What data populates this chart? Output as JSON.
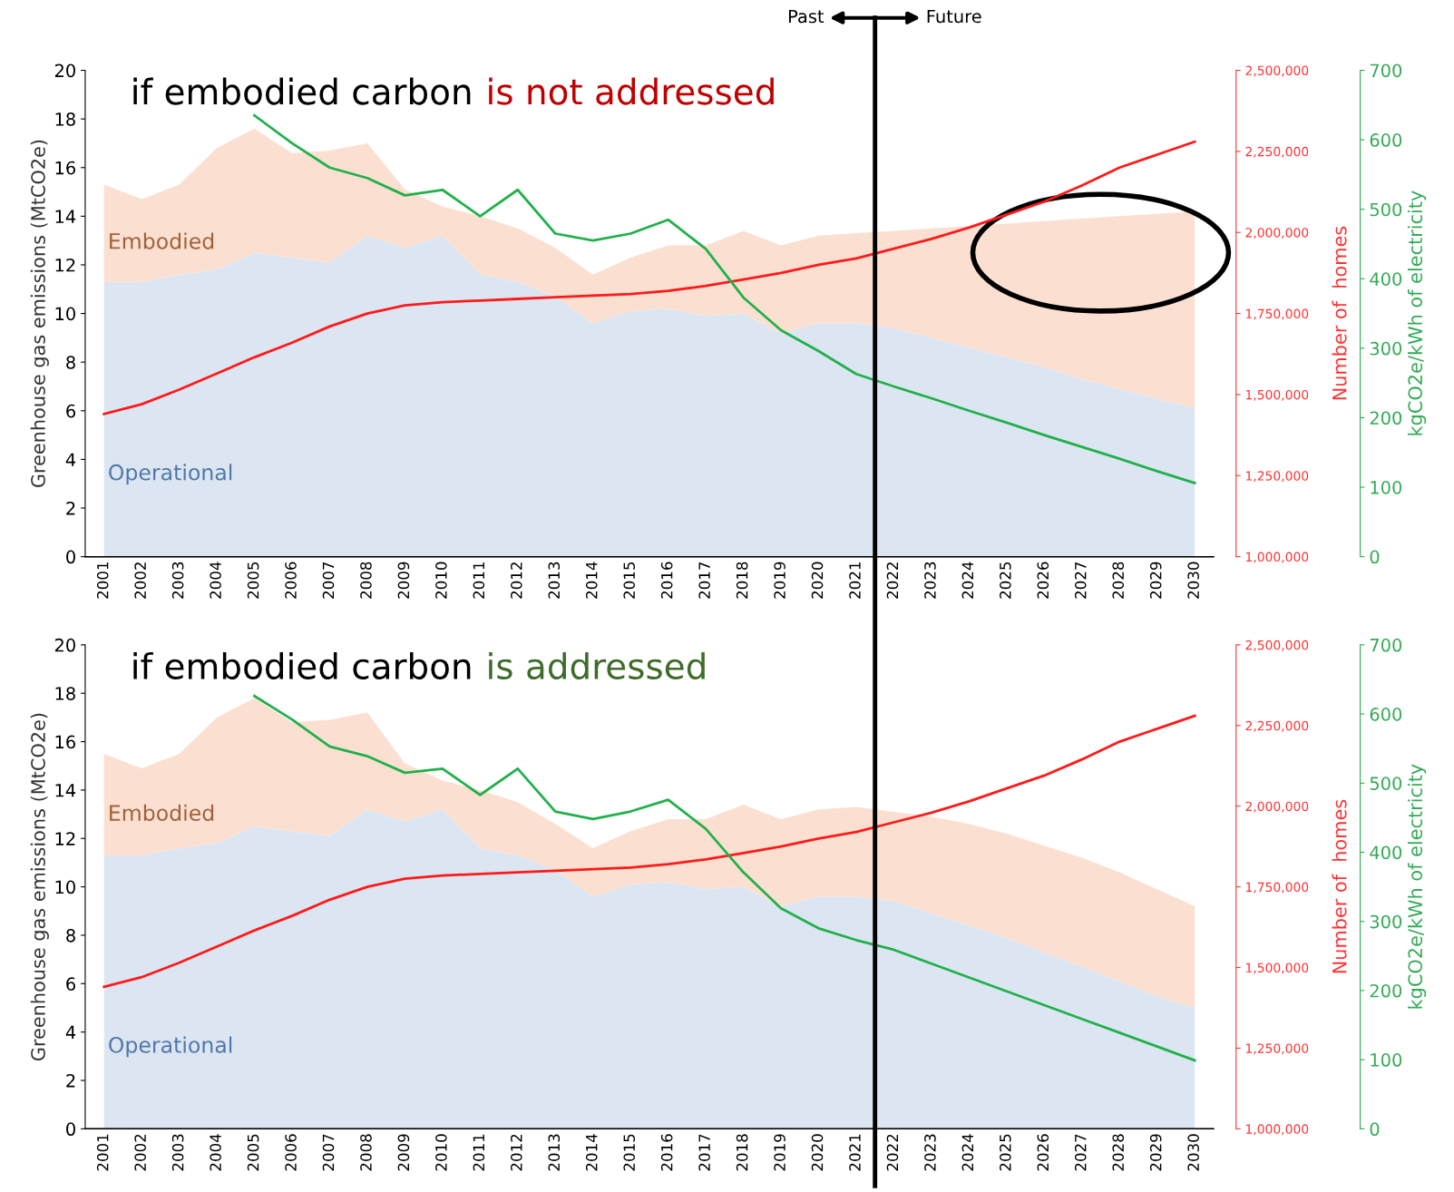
{
  "chart_data": [
    {
      "type": "area",
      "title": "if embodied carbon",
      "subtitle": "is not addressed",
      "ylabel": "Greenhouse gas emissions (MtCO2e)",
      "y2label": "Number of  homes",
      "y3label": "kgCO2e/kWh of electricity",
      "annotations": [
        "Past",
        "Future"
      ],
      "stacked": true,
      "categories": [
        "2001",
        "2002",
        "2003",
        "2004",
        "2005",
        "2006",
        "2007",
        "2008",
        "2009",
        "2010",
        "2011",
        "2012",
        "2013",
        "2014",
        "2015",
        "2016",
        "2017",
        "2018",
        "2019",
        "2020",
        "2021",
        "2022",
        "2023",
        "2024",
        "2025",
        "2026",
        "2027",
        "2028",
        "2029",
        "2030"
      ],
      "ylim": [
        0,
        20
      ],
      "yticks": [
        0,
        2,
        4,
        6,
        8,
        10,
        12,
        14,
        16,
        18,
        20
      ],
      "y2lim": [
        1000000,
        2500000
      ],
      "y2ticks": [
        {
          "value": 1000000,
          "label": "1,000,000"
        },
        {
          "value": 1250000,
          "label": "1,250,000"
        },
        {
          "value": 1500000,
          "label": "1,500,000"
        },
        {
          "value": 1750000,
          "label": "1,750,000"
        },
        {
          "value": 2000000,
          "label": "2,000,000"
        },
        {
          "value": 2250000,
          "label": "2,250,000"
        },
        {
          "value": 2500000,
          "label": "2,500,000"
        }
      ],
      "y3lim": [
        0,
        700
      ],
      "y3ticks": [
        0,
        100,
        200,
        300,
        400,
        500,
        600,
        700
      ],
      "series": [
        {
          "name": "Operational",
          "color": "#dce6f2",
          "values": [
            11.3,
            11.3,
            11.6,
            11.8,
            12.5,
            12.3,
            12.1,
            13.2,
            12.7,
            13.2,
            11.6,
            11.3,
            10.7,
            9.6,
            10.1,
            10.2,
            9.9,
            10.0,
            9.2,
            9.6,
            9.6,
            9.4,
            9.0,
            8.6,
            8.2,
            7.8,
            7.3,
            6.9,
            6.5,
            6.1
          ]
        },
        {
          "name": "Embodied",
          "color": "#fbe0d2",
          "values": [
            4.0,
            3.4,
            3.7,
            5.0,
            5.1,
            4.3,
            4.6,
            3.8,
            2.4,
            1.2,
            2.4,
            2.2,
            2.0,
            2.0,
            2.2,
            2.6,
            2.9,
            3.4,
            3.6,
            3.6,
            3.7,
            4.0,
            4.5,
            5.0,
            5.5,
            6.0,
            6.6,
            7.1,
            7.6,
            8.1
          ]
        },
        {
          "type": "line",
          "axis": "y2",
          "color": "#ff1a1a",
          "values": [
            1440000,
            1470000,
            1515000,
            1565000,
            1615000,
            1660000,
            1710000,
            1750000,
            1775000,
            1785000,
            1790000,
            1795000,
            1800000,
            1805000,
            1810000,
            1820000,
            1835000,
            1855000,
            1875000,
            1900000,
            1920000,
            1950000,
            1980000,
            2015000,
            2055000,
            2095000,
            2145000,
            2200000,
            2240000,
            2280000
          ]
        },
        {
          "type": "line",
          "axis": "y3",
          "color": "#22b04b",
          "values": [
            null,
            null,
            null,
            null,
            635,
            595,
            560,
            545,
            520,
            528,
            490,
            528,
            465,
            455,
            465,
            485,
            443,
            373,
            326,
            296,
            263,
            245,
            228,
            210,
            193,
            175,
            158,
            141,
            123,
            106
          ]
        }
      ]
    },
    {
      "type": "area",
      "title": "if embodied carbon",
      "subtitle": "is addressed",
      "ylabel": "Greenhouse gas emissions (MtCO2e)",
      "y2label": "Number of  homes",
      "y3label": "kgCO2e/kWh of electricity",
      "stacked": true,
      "categories": [
        "2001",
        "2002",
        "2003",
        "2004",
        "2005",
        "2006",
        "2007",
        "2008",
        "2009",
        "2010",
        "2011",
        "2012",
        "2013",
        "2014",
        "2015",
        "2016",
        "2017",
        "2018",
        "2019",
        "2020",
        "2021",
        "2022",
        "2023",
        "2024",
        "2025",
        "2026",
        "2027",
        "2028",
        "2029",
        "2030"
      ],
      "ylim": [
        0,
        20
      ],
      "yticks": [
        0,
        2,
        4,
        6,
        8,
        10,
        12,
        14,
        16,
        18,
        20
      ],
      "y2lim": [
        1000000,
        2500000
      ],
      "y2ticks": [
        {
          "value": 1000000,
          "label": "1,000,000"
        },
        {
          "value": 1250000,
          "label": "1,250,000"
        },
        {
          "value": 1500000,
          "label": "1,500,000"
        },
        {
          "value": 1750000,
          "label": "1,750,000"
        },
        {
          "value": 2000000,
          "label": "2,000,000"
        },
        {
          "value": 2250000,
          "label": "2,250,000"
        },
        {
          "value": 2500000,
          "label": "2,500,000"
        }
      ],
      "y3lim": [
        0,
        700
      ],
      "y3ticks": [
        0,
        100,
        200,
        300,
        400,
        500,
        600,
        700
      ],
      "series": [
        {
          "name": "Operational",
          "color": "#dce6f2",
          "values": [
            11.3,
            11.3,
            11.6,
            11.8,
            12.5,
            12.3,
            12.1,
            13.2,
            12.7,
            13.2,
            11.6,
            11.3,
            10.7,
            9.6,
            10.1,
            10.2,
            9.9,
            10.0,
            9.2,
            9.6,
            9.6,
            9.4,
            8.9,
            8.4,
            7.9,
            7.3,
            6.7,
            6.1,
            5.5,
            5.0
          ]
        },
        {
          "name": "Embodied",
          "color": "#fbe0d2",
          "values": [
            4.2,
            3.6,
            3.9,
            5.2,
            5.3,
            4.5,
            4.8,
            4.0,
            2.4,
            1.2,
            2.4,
            2.2,
            1.9,
            2.0,
            2.2,
            2.6,
            2.9,
            3.4,
            3.6,
            3.6,
            3.7,
            3.7,
            4.0,
            4.2,
            4.3,
            4.4,
            4.5,
            4.5,
            4.4,
            4.2
          ]
        },
        {
          "type": "line",
          "axis": "y2",
          "color": "#ff1a1a",
          "values": [
            1440000,
            1470000,
            1515000,
            1565000,
            1615000,
            1660000,
            1710000,
            1750000,
            1775000,
            1785000,
            1790000,
            1795000,
            1800000,
            1805000,
            1810000,
            1820000,
            1835000,
            1855000,
            1875000,
            1900000,
            1920000,
            1950000,
            1980000,
            2015000,
            2055000,
            2095000,
            2145000,
            2200000,
            2240000,
            2280000
          ]
        },
        {
          "type": "line",
          "axis": "y3",
          "color": "#22b04b",
          "values": [
            null,
            null,
            null,
            null,
            626,
            592,
            553,
            539,
            515,
            521,
            483,
            521,
            459,
            448,
            459,
            476,
            434,
            371,
            319,
            290,
            273,
            259,
            239,
            219,
            199,
            179,
            159,
            139,
            119,
            99
          ]
        }
      ]
    }
  ]
}
